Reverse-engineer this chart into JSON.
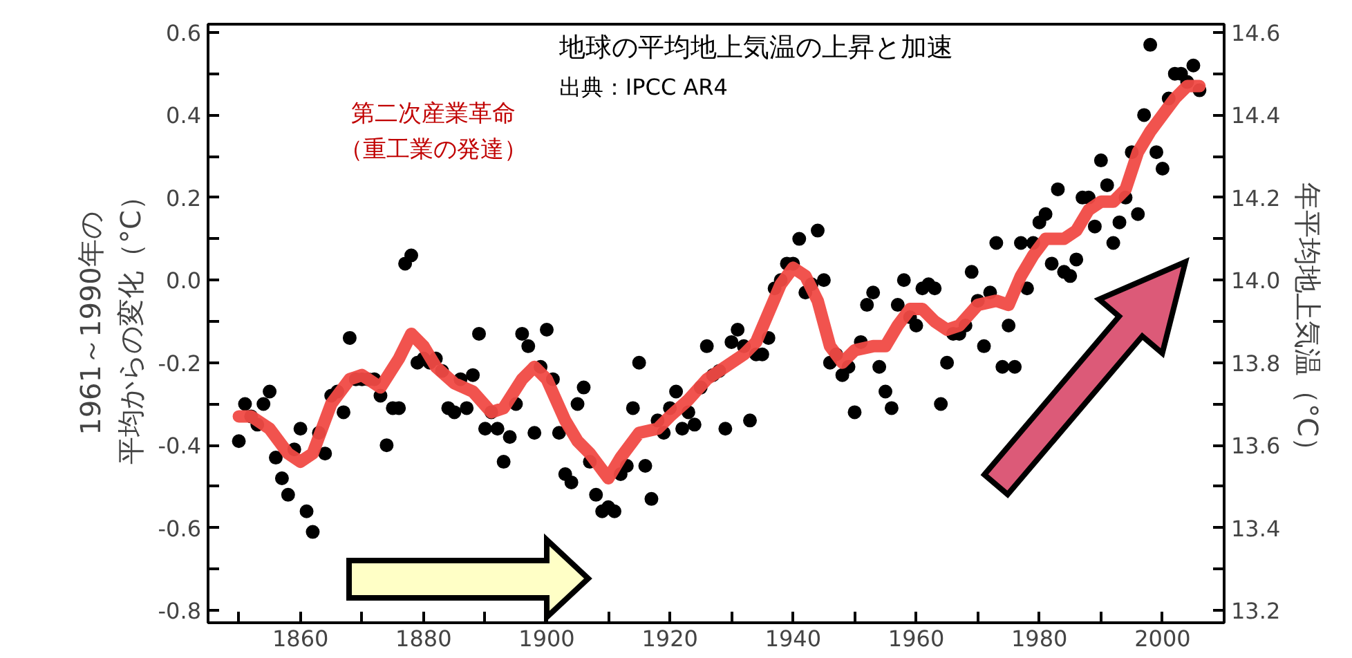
{
  "chart_data": {
    "type": "scatter",
    "title": "地球の平均地上気温の上昇と加速",
    "subtitle": "出典：IPCC AR4",
    "ylabel": "1961～1990年の平均からの変化（°C）",
    "y2label": "年平均地上気温（°C）",
    "annotations": [
      "第二次産業革命（重工業の発達）"
    ],
    "xlim": [
      1845,
      2010
    ],
    "ylim": [
      -0.83,
      0.62
    ],
    "y2lim": [
      13.17,
      14.62
    ],
    "xticks": [
      {
        "value": 1850,
        "label": null
      },
      1860,
      {
        "value": 1870,
        "label": null
      },
      1880,
      {
        "value": 1890,
        "label": null
      },
      1900,
      {
        "value": 1910,
        "label": null
      },
      1920,
      {
        "value": 1930,
        "label": null
      },
      1940,
      {
        "value": 1950,
        "label": null
      },
      1960,
      {
        "value": 1970,
        "label": null
      },
      1980,
      {
        "value": 1990,
        "label": null
      },
      2000
    ],
    "yticks": [
      {
        "value": -0.8,
        "label": "-0.8"
      },
      {
        "value": -0.7,
        "label": null
      },
      {
        "value": -0.6,
        "label": "-0.6"
      },
      {
        "value": -0.5,
        "label": null
      },
      {
        "value": -0.4,
        "label": "-0.4"
      },
      {
        "value": -0.3,
        "label": null
      },
      {
        "value": -0.2,
        "label": "-0.2"
      },
      {
        "value": -0.1,
        "label": null
      },
      {
        "value": 0.0,
        "label": "0.0"
      },
      {
        "value": 0.1,
        "label": null
      },
      {
        "value": 0.2,
        "label": "0.2"
      },
      {
        "value": 0.3,
        "label": null
      },
      {
        "value": 0.4,
        "label": "0.4"
      },
      {
        "value": 0.5,
        "label": null
      },
      {
        "value": 0.6,
        "label": "0.6"
      }
    ],
    "y2ticks": [
      {
        "value": 13.2,
        "label": "13.2"
      },
      {
        "value": 13.3,
        "label": null
      },
      {
        "value": 13.4,
        "label": "13.4"
      },
      {
        "value": 13.5,
        "label": null
      },
      {
        "value": 13.6,
        "label": "13.6"
      },
      {
        "value": 13.7,
        "label": null
      },
      {
        "value": 13.8,
        "label": "13.8"
      },
      {
        "value": 13.9,
        "label": null
      },
      {
        "value": 14.0,
        "label": "14.0"
      },
      {
        "value": 14.1,
        "label": null
      },
      {
        "value": 14.2,
        "label": "14.2"
      },
      {
        "value": 14.3,
        "label": null
      },
      {
        "value": 14.4,
        "label": "14.4"
      },
      {
        "value": 14.5,
        "label": null
      },
      {
        "value": 14.6,
        "label": "14.6"
      }
    ],
    "grid": false,
    "series": [
      {
        "color": "#000000",
        "marker": "circle",
        "x": [
          1850,
          1851,
          1852,
          1853,
          1854,
          1855,
          1856,
          1857,
          1858,
          1859,
          1860,
          1861,
          1862,
          1863,
          1864,
          1865,
          1866,
          1867,
          1868,
          1869,
          1870,
          1871,
          1872,
          1873,
          1874,
          1875,
          1876,
          1877,
          1878,
          1879,
          1880,
          1881,
          1882,
          1883,
          1884,
          1885,
          1886,
          1887,
          1888,
          1889,
          1890,
          1891,
          1892,
          1893,
          1894,
          1895,
          1896,
          1897,
          1898,
          1899,
          1900,
          1901,
          1902,
          1903,
          1904,
          1905,
          1906,
          1907,
          1908,
          1909,
          1910,
          1911,
          1912,
          1913,
          1914,
          1915,
          1916,
          1917,
          1918,
          1919,
          1920,
          1921,
          1922,
          1923,
          1924,
          1925,
          1926,
          1927,
          1928,
          1929,
          1930,
          1931,
          1932,
          1933,
          1934,
          1935,
          1936,
          1937,
          1938,
          1939,
          1940,
          1941,
          1942,
          1943,
          1944,
          1945,
          1946,
          1947,
          1948,
          1949,
          1950,
          1951,
          1952,
          1953,
          1954,
          1955,
          1956,
          1957,
          1958,
          1959,
          1960,
          1961,
          1962,
          1963,
          1964,
          1965,
          1966,
          1967,
          1968,
          1969,
          1970,
          1971,
          1972,
          1973,
          1974,
          1975,
          1976,
          1977,
          1978,
          1979,
          1980,
          1981,
          1982,
          1983,
          1984,
          1985,
          1986,
          1987,
          1988,
          1989,
          1990,
          1991,
          1992,
          1993,
          1994,
          1995,
          1996,
          1997,
          1998,
          1999,
          2000,
          2001,
          2002,
          2003,
          2004,
          2005,
          2006
        ],
        "values": [
          -0.39,
          -0.3,
          -0.33,
          -0.35,
          -0.3,
          -0.27,
          -0.43,
          -0.48,
          -0.52,
          -0.41,
          -0.36,
          -0.56,
          -0.61,
          -0.37,
          -0.42,
          -0.28,
          -0.27,
          -0.32,
          -0.14,
          -0.24,
          -0.24,
          -0.24,
          -0.24,
          -0.28,
          -0.4,
          -0.31,
          -0.31,
          0.04,
          0.06,
          -0.2,
          -0.19,
          -0.2,
          -0.19,
          -0.22,
          -0.31,
          -0.32,
          -0.24,
          -0.31,
          -0.23,
          -0.13,
          -0.36,
          -0.32,
          -0.36,
          -0.44,
          -0.38,
          -0.3,
          -0.13,
          -0.16,
          -0.37,
          -0.21,
          -0.12,
          -0.24,
          -0.37,
          -0.47,
          -0.49,
          -0.3,
          -0.26,
          -0.44,
          -0.52,
          -0.56,
          -0.55,
          -0.56,
          -0.47,
          -0.45,
          -0.31,
          -0.2,
          -0.45,
          -0.53,
          -0.34,
          -0.37,
          -0.31,
          -0.27,
          -0.36,
          -0.32,
          -0.35,
          -0.26,
          -0.16,
          -0.23,
          -0.22,
          -0.36,
          -0.15,
          -0.12,
          -0.16,
          -0.34,
          -0.18,
          -0.18,
          -0.14,
          -0.02,
          0.0,
          0.04,
          0.04,
          0.1,
          -0.03,
          -0.01,
          0.12,
          0.0,
          -0.2,
          -0.18,
          -0.23,
          -0.21,
          -0.32,
          -0.15,
          -0.06,
          -0.03,
          -0.21,
          -0.27,
          -0.31,
          -0.06,
          0.0,
          -0.09,
          -0.11,
          -0.02,
          -0.01,
          -0.02,
          -0.3,
          -0.2,
          -0.13,
          -0.13,
          -0.11,
          0.02,
          -0.05,
          -0.16,
          -0.03,
          0.09,
          -0.21,
          -0.11,
          -0.21,
          0.09,
          -0.02,
          0.09,
          0.14,
          0.16,
          0.04,
          0.22,
          0.02,
          0.01,
          0.05,
          0.2,
          0.2,
          0.13,
          0.29,
          0.23,
          0.09,
          0.14,
          0.2,
          0.31,
          0.16,
          0.4,
          0.57,
          0.31,
          0.27,
          0.44,
          0.5,
          0.5,
          0.48,
          0.52,
          0.46
        ]
      },
      {
        "type": "line",
        "color": "#f04a45",
        "line_style": "solid",
        "x": [
          1850,
          1852,
          1855,
          1858,
          1860,
          1862,
          1865,
          1868,
          1870,
          1873,
          1876,
          1878,
          1880,
          1882,
          1885,
          1888,
          1891,
          1893,
          1896,
          1898,
          1900,
          1903,
          1905,
          1907,
          1910,
          1912,
          1915,
          1918,
          1920,
          1923,
          1926,
          1929,
          1932,
          1934,
          1936,
          1938,
          1940,
          1942,
          1944,
          1946,
          1948,
          1950,
          1953,
          1955,
          1957,
          1959,
          1961,
          1963,
          1965,
          1967,
          1970,
          1973,
          1975,
          1977,
          1979,
          1981,
          1984,
          1986,
          1988,
          1990,
          1992,
          1994,
          1996,
          1998,
          2000,
          2002,
          2004,
          2006
        ],
        "values": [
          -0.33,
          -0.33,
          -0.36,
          -0.42,
          -0.44,
          -0.42,
          -0.3,
          -0.24,
          -0.23,
          -0.26,
          -0.19,
          -0.13,
          -0.16,
          -0.21,
          -0.25,
          -0.27,
          -0.32,
          -0.31,
          -0.24,
          -0.21,
          -0.24,
          -0.34,
          -0.39,
          -0.42,
          -0.48,
          -0.43,
          -0.37,
          -0.36,
          -0.33,
          -0.29,
          -0.24,
          -0.21,
          -0.18,
          -0.15,
          -0.08,
          -0.01,
          0.03,
          0.01,
          -0.05,
          -0.16,
          -0.2,
          -0.17,
          -0.16,
          -0.16,
          -0.11,
          -0.07,
          -0.07,
          -0.1,
          -0.12,
          -0.11,
          -0.06,
          -0.05,
          -0.06,
          0.01,
          0.06,
          0.1,
          0.1,
          0.12,
          0.17,
          0.19,
          0.19,
          0.22,
          0.31,
          0.36,
          0.4,
          0.44,
          0.47,
          0.47
        ]
      }
    ]
  }
}
